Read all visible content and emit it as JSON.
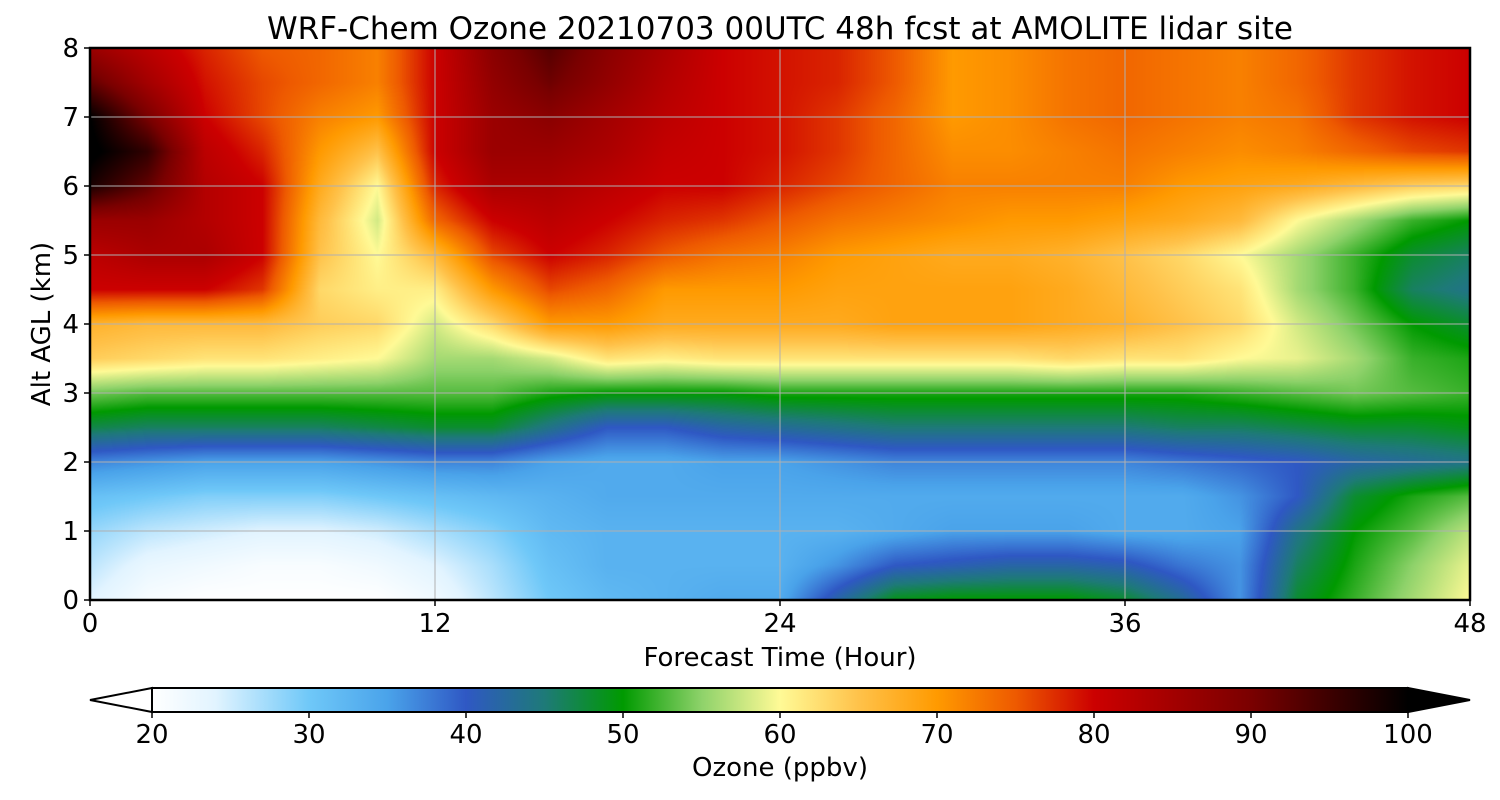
{
  "chart_data": {
    "type": "heatmap",
    "title": "WRF-Chem Ozone  20210703 00UTC 48h fcst at AMOLITE lidar site",
    "xlabel": "Forecast Time (Hour)",
    "ylabel": "Alt AGL (km)",
    "xlim": [
      0,
      48
    ],
    "ylim": [
      0,
      8
    ],
    "x_ticks": [
      "0",
      "12",
      "24",
      "36",
      "48"
    ],
    "y_ticks": [
      "0",
      "1",
      "2",
      "3",
      "4",
      "5",
      "6",
      "7",
      "8"
    ],
    "grid": true,
    "x_hours": [
      0,
      2,
      4,
      6,
      8,
      10,
      12,
      14,
      16,
      18,
      20,
      22,
      24,
      26,
      28,
      30,
      32,
      34,
      36,
      38,
      40,
      42,
      44,
      46,
      48
    ],
    "altitudes_km": [
      0,
      0.5,
      1,
      1.5,
      2,
      2.5,
      3,
      3.5,
      4,
      4.5,
      5,
      5.5,
      6,
      6.5,
      7,
      7.5,
      8
    ],
    "ozone_ppbv": [
      [
        24,
        21,
        20,
        20,
        20,
        20,
        22,
        26,
        30,
        32,
        33,
        34,
        34,
        42,
        49,
        50,
        50,
        50,
        48,
        43,
        36,
        48,
        52,
        56,
        60
      ],
      [
        26,
        23,
        22,
        21,
        21,
        22,
        24,
        27,
        31,
        33,
        33,
        33,
        33,
        36,
        40,
        41,
        42,
        42,
        41,
        38,
        36,
        46,
        51,
        55,
        59
      ],
      [
        28,
        26,
        25,
        24,
        24,
        25,
        27,
        29,
        32,
        33,
        33,
        33,
        33,
        33,
        34,
        35,
        35,
        35,
        34,
        34,
        35,
        44,
        50,
        53,
        57
      ],
      [
        31,
        30,
        29,
        29,
        29,
        30,
        31,
        32,
        33,
        34,
        34,
        34,
        34,
        34,
        34,
        34,
        34,
        34,
        34,
        34,
        36,
        40,
        48,
        51,
        53
      ],
      [
        37,
        36,
        35,
        35,
        35,
        36,
        37,
        37,
        35,
        34,
        34,
        35,
        35,
        36,
        37,
        37,
        37,
        37,
        37,
        38,
        39,
        40,
        42,
        43,
        44
      ],
      [
        47,
        46,
        46,
        46,
        46,
        47,
        48,
        48,
        44,
        40,
        40,
        42,
        43,
        44,
        45,
        45,
        45,
        45,
        45,
        46,
        46,
        47,
        48,
        48,
        49
      ],
      [
        54,
        53,
        53,
        53,
        53,
        53,
        53,
        53,
        51,
        50,
        50,
        50,
        51,
        51,
        51,
        51,
        51,
        51,
        51,
        51,
        52,
        53,
        54,
        53,
        52
      ],
      [
        64,
        63,
        62,
        62,
        61,
        60,
        56,
        56,
        58,
        62,
        61,
        62,
        62,
        62,
        62,
        62,
        62,
        63,
        62,
        62,
        60,
        59,
        56,
        52,
        51
      ],
      [
        67,
        66,
        66,
        66,
        64,
        63,
        58,
        63,
        70,
        70,
        68,
        68,
        68,
        68,
        69,
        69,
        69,
        68,
        67,
        65,
        63,
        58,
        54,
        50,
        48
      ],
      [
        80,
        80,
        80,
        77,
        63,
        61,
        61,
        70,
        76,
        74,
        70,
        70,
        70,
        69,
        69,
        69,
        69,
        68,
        66,
        64,
        62,
        56,
        52,
        46,
        44
      ],
      [
        82,
        84,
        84,
        80,
        65,
        60,
        66,
        76,
        80,
        78,
        75,
        73,
        72,
        70,
        69,
        68,
        68,
        67,
        65,
        63,
        60,
        56,
        52,
        48,
        46
      ],
      [
        86,
        86,
        83,
        80,
        66,
        58,
        74,
        80,
        82,
        80,
        78,
        77,
        75,
        73,
        72,
        71,
        70,
        70,
        69,
        68,
        66,
        60,
        56,
        52,
        50
      ],
      [
        98,
        92,
        83,
        80,
        68,
        60,
        78,
        84,
        84,
        82,
        80,
        80,
        78,
        76,
        74,
        72,
        72,
        72,
        72,
        70,
        69,
        68,
        66,
        64,
        63
      ],
      [
        101,
        96,
        82,
        78,
        70,
        65,
        80,
        86,
        86,
        84,
        81,
        80,
        79,
        77,
        74,
        71,
        71,
        72,
        73,
        72,
        71,
        72,
        74,
        76,
        77
      ],
      [
        100,
        90,
        80,
        76,
        72,
        70,
        80,
        86,
        88,
        85,
        82,
        80,
        79,
        77,
        74,
        70,
        71,
        73,
        74,
        73,
        72,
        73,
        77,
        79,
        80
      ],
      [
        92,
        85,
        79,
        76,
        74,
        72,
        80,
        87,
        91,
        87,
        83,
        80,
        79,
        78,
        75,
        70,
        71,
        73,
        74,
        73,
        72,
        74,
        77,
        79,
        80
      ],
      [
        86,
        82,
        78,
        75,
        74,
        72,
        80,
        88,
        93,
        88,
        84,
        80,
        79,
        78,
        75,
        70,
        71,
        73,
        74,
        73,
        72,
        74,
        77,
        79,
        80
      ]
    ],
    "colorbar": {
      "label": "Ozone  (ppbv)",
      "min": 20,
      "max": 100,
      "ticks": [
        "20",
        "30",
        "40",
        "50",
        "60",
        "70",
        "80",
        "90",
        "100"
      ],
      "extend": "both",
      "stops": [
        {
          "v": 20,
          "c": "#ffffff"
        },
        {
          "v": 24,
          "c": "#e2f4ff"
        },
        {
          "v": 30,
          "c": "#6fc8f8"
        },
        {
          "v": 35,
          "c": "#4aa3ea"
        },
        {
          "v": 40,
          "c": "#2f58c4"
        },
        {
          "v": 45,
          "c": "#1e7a78"
        },
        {
          "v": 50,
          "c": "#009a00"
        },
        {
          "v": 55,
          "c": "#8ed26a"
        },
        {
          "v": 60,
          "c": "#fffa96"
        },
        {
          "v": 65,
          "c": "#ffc24a"
        },
        {
          "v": 70,
          "c": "#ff9a00"
        },
        {
          "v": 75,
          "c": "#ee5a00"
        },
        {
          "v": 80,
          "c": "#cc0000"
        },
        {
          "v": 90,
          "c": "#7a0000"
        },
        {
          "v": 100,
          "c": "#000000"
        }
      ]
    }
  }
}
